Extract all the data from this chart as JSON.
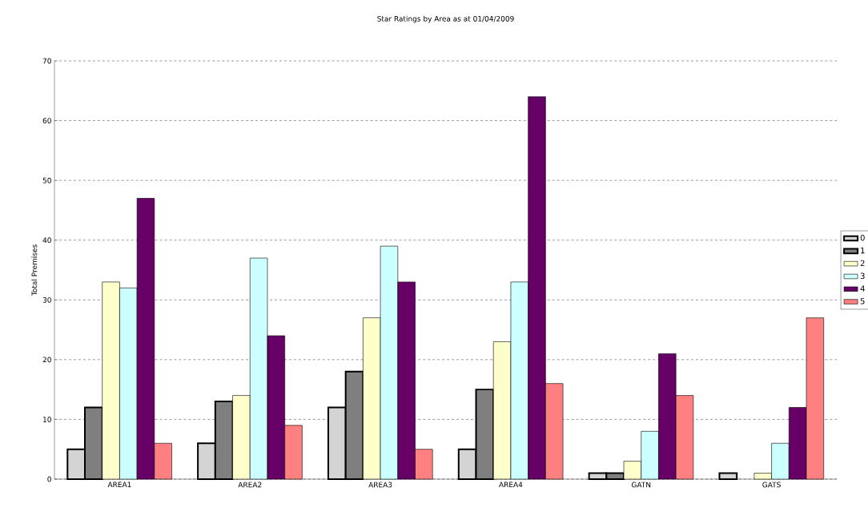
{
  "chart_data": {
    "type": "bar",
    "title": "Star Ratings by Area as at 01/04/2009",
    "ylabel": "Total Premises",
    "categories": [
      "AREA1",
      "AREA2",
      "AREA3",
      "AREA4",
      "GATN",
      "GATS"
    ],
    "series": [
      {
        "name": "0",
        "color": "#d4d4d4",
        "values": [
          5,
          6,
          12,
          5,
          1,
          1
        ]
      },
      {
        "name": "1",
        "color": "#7f7f7f",
        "values": [
          12,
          13,
          18,
          15,
          1,
          0
        ]
      },
      {
        "name": "2",
        "color": "#ffffcc",
        "values": [
          33,
          14,
          27,
          23,
          3,
          1
        ]
      },
      {
        "name": "3",
        "color": "#ccffff",
        "values": [
          32,
          37,
          39,
          33,
          8,
          6
        ]
      },
      {
        "name": "4",
        "color": "#660066",
        "values": [
          47,
          24,
          33,
          64,
          21,
          12
        ]
      },
      {
        "name": "5",
        "color": "#ff8080",
        "values": [
          6,
          9,
          5,
          16,
          14,
          27
        ]
      }
    ],
    "ylim": [
      0,
      70
    ],
    "yticks": [
      0,
      10,
      20,
      30,
      40,
      50,
      60,
      70
    ],
    "grid": "y",
    "legend": "right"
  }
}
